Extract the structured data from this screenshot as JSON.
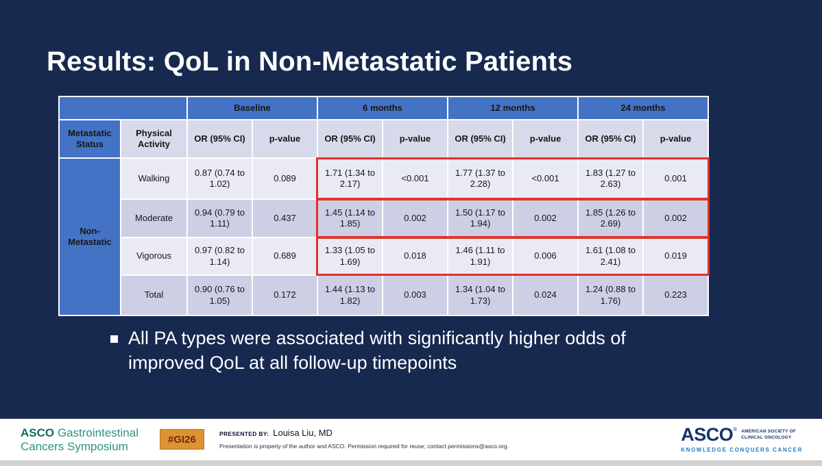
{
  "slide": {
    "title": "Results: QoL in Non-Metastatic Patients",
    "bullet_text": "All PA types were associated with significantly higher odds of improved QoL at all follow-up timepoints"
  },
  "table": {
    "col_groups": [
      "Baseline",
      "6 months",
      "12 months",
      "24 months"
    ],
    "header_status": "Metastatic Status",
    "header_activity": "Physical Activity",
    "header_or": "OR (95% CI)",
    "header_p": "p-value",
    "group_label": "Non-Metastatic",
    "rows": [
      {
        "activity": "Walking",
        "highlighted": true,
        "values": [
          "0.87 (0.74 to 1.02)",
          "0.089",
          "1.71 (1.34 to 2.17)",
          "<0.001",
          "1.77 (1.37 to 2.28)",
          "<0.001",
          "1.83 (1.27 to 2.63)",
          "0.001"
        ]
      },
      {
        "activity": "Moderate",
        "highlighted": true,
        "values": [
          "0.94 (0.79 to 1.11)",
          "0.437",
          "1.45 (1.14 to 1.85)",
          "0.002",
          "1.50 (1.17 to 1.94)",
          "0.002",
          "1.85 (1.26 to 2.69)",
          "0.002"
        ]
      },
      {
        "activity": "Vigorous",
        "highlighted": true,
        "values": [
          "0.97 (0.82 to 1.14)",
          "0.689",
          "1.33 (1.05 to 1.69)",
          "0.018",
          "1.46 (1.11 to 1.91)",
          "0.006",
          "1.61 (1.08 to 2.41)",
          "0.019"
        ]
      },
      {
        "activity": "Total",
        "highlighted": false,
        "values": [
          "0.90 (0.76 to 1.05)",
          "0.172",
          "1.44 (1.13 to 1.82)",
          "0.003",
          "1.34 (1.04 to 1.73)",
          "0.024",
          "1.24 (0.88 to 1.76)",
          "0.223"
        ]
      }
    ]
  },
  "footer": {
    "symposium_name_bold": "ASCO",
    "symposium_name_line1": "Gastrointestinal",
    "symposium_name_line2": "Cancers Symposium",
    "hashtag": "#GI26",
    "presented_by_label": "PRESENTED BY:",
    "presenter_name": "Louisa Liu, MD",
    "disclaimer": "Presentation is property of the author and ASCO. Permission required for reuse; contact permissions@asco.org.",
    "asco_wordmark": "ASCO",
    "asco_registered": "®",
    "asco_society_line1": "AMERICAN SOCIETY OF",
    "asco_society_line2": "CLINICAL ONCOLOGY",
    "asco_tagline": "KNOWLEDGE CONQUERS CANCER"
  },
  "colors": {
    "slide_bg": "#17294F",
    "header_blue": "#4472C4",
    "subheader_lavender": "#D8D9EA",
    "band_light": "#E9EAF4",
    "band_dark": "#CDCFE5",
    "highlight_red": "#E0312A",
    "asco_green_dark": "#0F6E5B",
    "asco_green": "#2B947E",
    "badge_orange": "#DE9331",
    "badge_text": "#6E2C11",
    "asco_navy": "#15356B",
    "tagline_blue": "#1E79C0"
  }
}
